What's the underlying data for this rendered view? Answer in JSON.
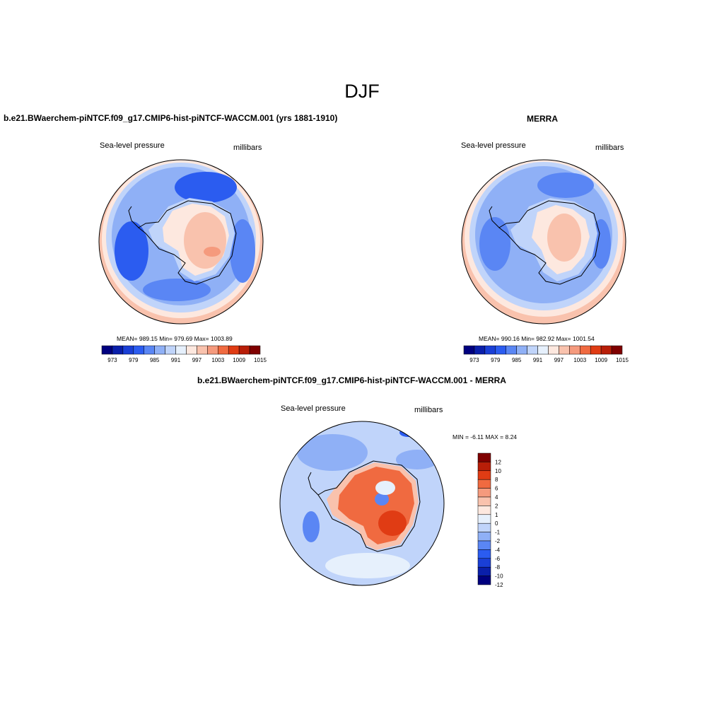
{
  "title": "DJF",
  "panels": [
    {
      "title": "b.e21.BWaerchem-piNTCF.f09_g17.CMIP6-hist-piNTCF-WACCM.001 (yrs 1881-1910)",
      "variable": "Sea-level pressure",
      "units": "millibars",
      "stats": "MEAN= 989.15   Min= 979.69   Max= 1003.89",
      "colorbar_ticks": [
        "973",
        "979",
        "985",
        "991",
        "997",
        "1003",
        "1009",
        "1015"
      ]
    },
    {
      "title": "MERRA",
      "variable": "Sea-level pressure",
      "units": "millibars",
      "stats": "MEAN= 990.16   Min= 982.92   Max= 1001.54",
      "colorbar_ticks": [
        "973",
        "979",
        "985",
        "991",
        "997",
        "1003",
        "1009",
        "1015"
      ]
    },
    {
      "title": "b.e21.BWaerchem-piNTCF.f09_g17.CMIP6-hist-piNTCF-WACCM.001 - MERRA",
      "variable": "Sea-level pressure",
      "units": "millibars",
      "stats": "MIN =  -6.11 MAX =   8.24",
      "colorbar_ticks": [
        "12",
        "10",
        "8",
        "6",
        "4",
        "2",
        "1",
        "0",
        "-1",
        "-2",
        "-4",
        "-6",
        "-8",
        "-10",
        "-12"
      ]
    }
  ],
  "colors": {
    "abs_scale": [
      "#00007f",
      "#0a1faa",
      "#1a3fd6",
      "#2b5cf0",
      "#5a86f4",
      "#8fb0f6",
      "#c0d4fa",
      "#e6f0fc",
      "#fde8df",
      "#f9c2ad",
      "#f59a7d",
      "#f06a40",
      "#e03c14",
      "#b81e08",
      "#7f0000"
    ],
    "diff_scale": [
      "#7f0000",
      "#b81e08",
      "#e03c14",
      "#f06a40",
      "#f59a7d",
      "#f9c2ad",
      "#fde8df",
      "#e6f0fc",
      "#c0d4fa",
      "#8fb0f6",
      "#5a86f4",
      "#2b5cf0",
      "#1a3fd6",
      "#0a1faa",
      "#00007f"
    ]
  }
}
